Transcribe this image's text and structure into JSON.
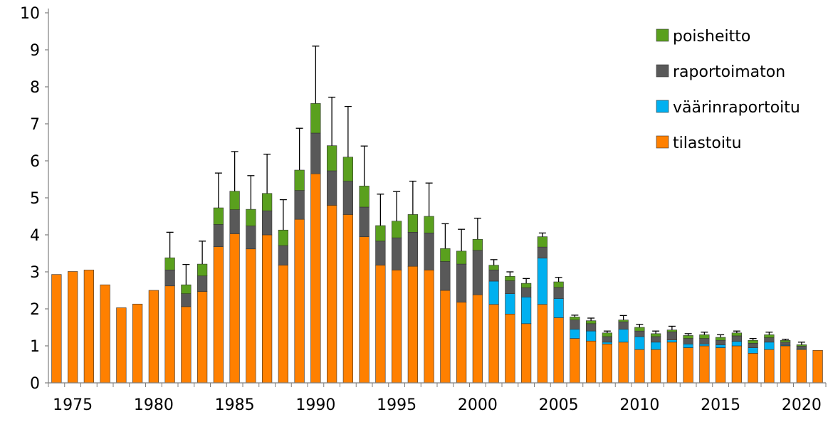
{
  "chart_data": {
    "type": "bar",
    "stacked": true,
    "title": "",
    "xlabel": "",
    "ylabel": "",
    "ylim": [
      0,
      10
    ],
    "yticks": [
      0,
      1,
      2,
      3,
      4,
      5,
      6,
      7,
      8,
      9,
      10
    ],
    "xticks": [
      1975,
      1980,
      1985,
      1990,
      1995,
      2000,
      2005,
      2010,
      2015,
      2020
    ],
    "grid": false,
    "legend_position": "top-right",
    "categories": [
      1974,
      1975,
      1976,
      1977,
      1978,
      1979,
      1980,
      1981,
      1982,
      1983,
      1984,
      1985,
      1986,
      1987,
      1988,
      1989,
      1990,
      1991,
      1992,
      1993,
      1994,
      1995,
      1996,
      1997,
      1998,
      1999,
      2000,
      2001,
      2002,
      2003,
      2004,
      2005,
      2006,
      2007,
      2008,
      2009,
      2010,
      2011,
      2012,
      2013,
      2014,
      2015,
      2016,
      2017,
      2018,
      2019,
      2020,
      2021
    ],
    "series": [
      {
        "name": "tilastoitu",
        "color": "#ff8000",
        "values": [
          2.93,
          3.01,
          3.05,
          2.65,
          2.03,
          2.13,
          2.5,
          2.62,
          2.06,
          2.47,
          3.68,
          4.03,
          3.62,
          4.0,
          3.18,
          4.42,
          5.65,
          4.8,
          4.55,
          3.95,
          3.18,
          3.05,
          3.15,
          3.05,
          2.5,
          2.18,
          2.38,
          2.12,
          1.86,
          1.6,
          2.12,
          1.76,
          1.2,
          1.13,
          1.05,
          1.1,
          0.9,
          0.9,
          1.1,
          0.95,
          1.0,
          0.95,
          1.0,
          0.8,
          0.9,
          1.0,
          0.9,
          0.88
        ]
      },
      {
        "name": "väärinraportoitu",
        "color": "#00b0f0",
        "values": [
          0,
          0,
          0,
          0,
          0,
          0,
          0,
          0,
          0,
          0,
          0,
          0,
          0,
          0,
          0,
          0,
          0,
          0,
          0,
          0,
          0,
          0,
          0,
          0,
          0,
          0,
          0,
          0.63,
          0.55,
          0.72,
          1.25,
          0.52,
          0.25,
          0.27,
          0.05,
          0.35,
          0.35,
          0.2,
          0.06,
          0.1,
          0.05,
          0.08,
          0.12,
          0.15,
          0.2,
          0.02,
          0.02,
          0
        ]
      },
      {
        "name": "raportoimaton",
        "color": "#595959",
        "values": [
          0,
          0,
          0,
          0,
          0,
          0,
          0,
          0.43,
          0.35,
          0.42,
          0.6,
          0.65,
          0.62,
          0.65,
          0.53,
          0.78,
          1.1,
          0.93,
          0.9,
          0.8,
          0.65,
          0.87,
          0.92,
          1.0,
          0.78,
          1.03,
          1.2,
          0.3,
          0.35,
          0.25,
          0.3,
          0.3,
          0.25,
          0.2,
          0.15,
          0.2,
          0.15,
          0.15,
          0.22,
          0.15,
          0.15,
          0.12,
          0.15,
          0.12,
          0.12,
          0.08,
          0.07,
          0
        ]
      },
      {
        "name": "poisheitto",
        "color": "#5aa01e",
        "values": [
          0,
          0,
          0,
          0,
          0,
          0,
          0,
          0.33,
          0.24,
          0.32,
          0.45,
          0.5,
          0.45,
          0.47,
          0.42,
          0.55,
          0.8,
          0.68,
          0.65,
          0.57,
          0.42,
          0.45,
          0.48,
          0.45,
          0.35,
          0.35,
          0.3,
          0.13,
          0.12,
          0.12,
          0.28,
          0.15,
          0.08,
          0.08,
          0.1,
          0.05,
          0.1,
          0.08,
          0.05,
          0.08,
          0.1,
          0.08,
          0.08,
          0.08,
          0.08,
          0.05,
          0.04,
          0
        ]
      }
    ],
    "error_bar_upper": [
      null,
      null,
      null,
      null,
      null,
      null,
      null,
      4.07,
      3.2,
      3.83,
      5.67,
      6.25,
      5.6,
      6.18,
      4.95,
      6.88,
      9.1,
      7.72,
      7.47,
      6.4,
      5.1,
      5.17,
      5.45,
      5.4,
      4.3,
      4.15,
      4.45,
      3.33,
      3.0,
      2.82,
      4.05,
      2.85,
      1.83,
      1.75,
      1.4,
      1.82,
      1.58,
      1.4,
      1.53,
      1.33,
      1.37,
      1.3,
      1.4,
      1.2,
      1.37,
      1.18,
      1.1,
      null
    ]
  }
}
